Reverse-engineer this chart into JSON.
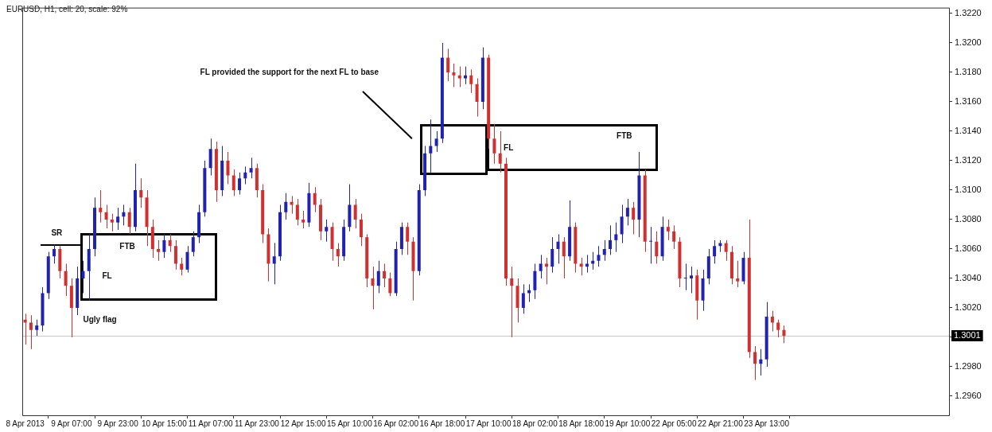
{
  "chart_data": {
    "type": "candlestick",
    "title": "EURUSD, H1, cell: 20, scale: 92%",
    "annotations": [
      "FL provided the support for the next FL to base",
      "SR",
      "FTB",
      "FL",
      "Ugly flag",
      "FL",
      "FTB"
    ],
    "categories": [
      "8 Apr 2013",
      null,
      null,
      null,
      null,
      null,
      null,
      null,
      "9 Apr 07:00",
      null,
      null,
      null,
      null,
      null,
      null,
      null,
      "9 Apr 23:00",
      null,
      null,
      null,
      null,
      null,
      null,
      null,
      "10 Apr 15:00",
      null,
      null,
      null,
      null,
      null,
      null,
      null,
      "11 Apr 07:00",
      null,
      null,
      null,
      null,
      null,
      null,
      null,
      "11 Apr 23:00",
      null,
      null,
      null,
      null,
      null,
      null,
      null,
      "12 Apr 15:00",
      null,
      null,
      null,
      null,
      null,
      null,
      null,
      "15 Apr 10:00",
      null,
      null,
      null,
      null,
      null,
      null,
      null,
      "16 Apr 02:00",
      null,
      null,
      null,
      null,
      null,
      null,
      null,
      "16 Apr 18:00",
      null,
      null,
      null,
      null,
      null,
      null,
      null,
      "17 Apr 10:00",
      null,
      null,
      null,
      null,
      null,
      null,
      null,
      "18 Apr 02:00",
      null,
      null,
      null,
      null,
      null,
      null,
      null,
      "18 Apr 18:00",
      null,
      null,
      null,
      null,
      null,
      null,
      null,
      "19 Apr 10:00",
      null,
      null,
      null,
      null,
      null,
      null,
      null,
      "22 Apr 05:00",
      null,
      null,
      null,
      null,
      null,
      null,
      null,
      "22 Apr 21:00",
      null,
      null,
      null,
      null,
      null,
      null,
      null,
      "23 Apr 13:00",
      null,
      null,
      null,
      null,
      null,
      null,
      null,
      null,
      null,
      null,
      null,
      null,
      null,
      null,
      null,
      null,
      null,
      null,
      null,
      null,
      null,
      null,
      null,
      null,
      null,
      null,
      null,
      null,
      null,
      null,
      null
    ],
    "ohlc": [
      [
        1.3012,
        1.3016,
        1.2995,
        1.301
      ],
      [
        1.301,
        1.3015,
        1.2992,
        1.3005
      ],
      [
        1.3005,
        1.3012,
        1.3001,
        1.3008
      ],
      [
        1.3008,
        1.3034,
        1.3004,
        1.303
      ],
      [
        1.303,
        1.3058,
        1.3026,
        1.3055
      ],
      [
        1.3055,
        1.3063,
        1.305,
        1.306
      ],
      [
        1.306,
        1.3062,
        1.304,
        1.3045
      ],
      [
        1.3045,
        1.305,
        1.3028,
        1.3035
      ],
      [
        1.3035,
        1.304,
        1.3,
        1.302
      ],
      [
        1.302,
        1.3048,
        1.3015,
        1.304
      ],
      [
        1.304,
        1.3052,
        1.303,
        1.3045
      ],
      [
        1.3045,
        1.307,
        1.3025,
        1.306
      ],
      [
        1.306,
        1.3095,
        1.3055,
        1.3088
      ],
      [
        1.3088,
        1.31,
        1.3078,
        1.3085
      ],
      [
        1.3085,
        1.309,
        1.3074,
        1.308
      ],
      [
        1.308,
        1.3084,
        1.3072,
        1.3078
      ],
      [
        1.3078,
        1.3088,
        1.3073,
        1.3082
      ],
      [
        1.3082,
        1.309,
        1.3076,
        1.3085
      ],
      [
        1.3085,
        1.3088,
        1.307,
        1.3075
      ],
      [
        1.3075,
        1.3118,
        1.3072,
        1.31
      ],
      [
        1.31,
        1.3108,
        1.3088,
        1.3095
      ],
      [
        1.3095,
        1.31,
        1.3062,
        1.3075
      ],
      [
        1.3075,
        1.308,
        1.3054,
        1.306
      ],
      [
        1.306,
        1.3066,
        1.3052,
        1.3058
      ],
      [
        1.3058,
        1.307,
        1.3054,
        1.3066
      ],
      [
        1.3066,
        1.307,
        1.3058,
        1.3062
      ],
      [
        1.3062,
        1.3066,
        1.3046,
        1.305
      ],
      [
        1.305,
        1.3054,
        1.3042,
        1.3046
      ],
      [
        1.3046,
        1.3062,
        1.3044,
        1.3058
      ],
      [
        1.3058,
        1.3072,
        1.3055,
        1.3068
      ],
      [
        1.3068,
        1.309,
        1.3064,
        1.3085
      ],
      [
        1.3085,
        1.312,
        1.3082,
        1.3115
      ],
      [
        1.3115,
        1.3135,
        1.311,
        1.3128
      ],
      [
        1.3128,
        1.3133,
        1.3092,
        1.31
      ],
      [
        1.31,
        1.313,
        1.3096,
        1.312
      ],
      [
        1.312,
        1.3126,
        1.3104,
        1.311
      ],
      [
        1.311,
        1.3114,
        1.3096,
        1.31
      ],
      [
        1.31,
        1.3112,
        1.3097,
        1.3108
      ],
      [
        1.3108,
        1.3116,
        1.3104,
        1.3112
      ],
      [
        1.3112,
        1.3122,
        1.3108,
        1.3115
      ],
      [
        1.3115,
        1.3118,
        1.3095,
        1.31
      ],
      [
        1.31,
        1.3104,
        1.3064,
        1.307
      ],
      [
        1.307,
        1.3074,
        1.3038,
        1.305
      ],
      [
        1.305,
        1.3064,
        1.3036,
        1.3055
      ],
      [
        1.3055,
        1.309,
        1.3052,
        1.3085
      ],
      [
        1.3085,
        1.3098,
        1.308,
        1.3092
      ],
      [
        1.3092,
        1.3096,
        1.3084,
        1.309
      ],
      [
        1.309,
        1.3094,
        1.3076,
        1.308
      ],
      [
        1.308,
        1.3086,
        1.3074,
        1.3078
      ],
      [
        1.3078,
        1.3105,
        1.3075,
        1.3098
      ],
      [
        1.3098,
        1.3102,
        1.3085,
        1.309
      ],
      [
        1.309,
        1.3094,
        1.3066,
        1.3072
      ],
      [
        1.3072,
        1.308,
        1.3065,
        1.3075
      ],
      [
        1.3075,
        1.3078,
        1.3052,
        1.306
      ],
      [
        1.306,
        1.3064,
        1.3048,
        1.3055
      ],
      [
        1.3055,
        1.308,
        1.3052,
        1.3075
      ],
      [
        1.3075,
        1.3104,
        1.3072,
        1.309
      ],
      [
        1.309,
        1.3094,
        1.3074,
        1.308
      ],
      [
        1.308,
        1.3084,
        1.3062,
        1.3068
      ],
      [
        1.3068,
        1.307,
        1.3034,
        1.304
      ],
      [
        1.304,
        1.3048,
        1.3019,
        1.3035
      ],
      [
        1.3035,
        1.3052,
        1.303,
        1.3045
      ],
      [
        1.3045,
        1.305,
        1.3034,
        1.304
      ],
      [
        1.304,
        1.3044,
        1.3028,
        1.303
      ],
      [
        1.303,
        1.3065,
        1.3028,
        1.306
      ],
      [
        1.306,
        1.3078,
        1.3056,
        1.3075
      ],
      [
        1.3075,
        1.3078,
        1.3056,
        1.3065
      ],
      [
        1.3065,
        1.3068,
        1.3025,
        1.3045
      ],
      [
        1.3045,
        1.3104,
        1.3042,
        1.31
      ],
      [
        1.31,
        1.313,
        1.3096,
        1.3125
      ],
      [
        1.3125,
        1.3148,
        1.3112,
        1.313
      ],
      [
        1.313,
        1.314,
        1.3126,
        1.3135
      ],
      [
        1.3135,
        1.32,
        1.3132,
        1.319
      ],
      [
        1.319,
        1.3196,
        1.3174,
        1.318
      ],
      [
        1.318,
        1.3186,
        1.317,
        1.3178
      ],
      [
        1.3178,
        1.3184,
        1.317,
        1.3176
      ],
      [
        1.3176,
        1.3184,
        1.3172,
        1.3178
      ],
      [
        1.3178,
        1.3182,
        1.3166,
        1.3172
      ],
      [
        1.3172,
        1.3176,
        1.315,
        1.316
      ],
      [
        1.316,
        1.3197,
        1.3155,
        1.319
      ],
      [
        1.319,
        1.3192,
        1.3128,
        1.3135
      ],
      [
        1.3135,
        1.3145,
        1.3118,
        1.3125
      ],
      [
        1.3125,
        1.314,
        1.3112,
        1.3118
      ],
      [
        1.3118,
        1.3122,
        1.3035,
        1.304
      ],
      [
        1.304,
        1.3048,
        1.3,
        1.3035
      ],
      [
        1.3035,
        1.304,
        1.301,
        1.302
      ],
      [
        1.302,
        1.3036,
        1.3016,
        1.303
      ],
      [
        1.303,
        1.3036,
        1.3024,
        1.3032
      ],
      [
        1.3032,
        1.305,
        1.3026,
        1.3045
      ],
      [
        1.3045,
        1.3056,
        1.304,
        1.305
      ],
      [
        1.305,
        1.3054,
        1.3036,
        1.3048
      ],
      [
        1.3048,
        1.3068,
        1.3044,
        1.306
      ],
      [
        1.306,
        1.307,
        1.305,
        1.3065
      ],
      [
        1.3065,
        1.3068,
        1.304,
        1.3055
      ],
      [
        1.3055,
        1.3093,
        1.3052,
        1.3075
      ],
      [
        1.3075,
        1.3078,
        1.3044,
        1.305
      ],
      [
        1.305,
        1.3054,
        1.3042,
        1.3048
      ],
      [
        1.3048,
        1.3056,
        1.3044,
        1.305
      ],
      [
        1.305,
        1.3058,
        1.3046,
        1.3052
      ],
      [
        1.3052,
        1.3062,
        1.3048,
        1.3056
      ],
      [
        1.3056,
        1.3066,
        1.3052,
        1.306
      ],
      [
        1.306,
        1.3076,
        1.3056,
        1.3066
      ],
      [
        1.3066,
        1.3078,
        1.3058,
        1.307
      ],
      [
        1.307,
        1.309,
        1.3064,
        1.3082
      ],
      [
        1.3082,
        1.3094,
        1.3076,
        1.3088
      ],
      [
        1.3088,
        1.3092,
        1.307,
        1.308
      ],
      [
        1.308,
        1.3126,
        1.3068,
        1.311
      ],
      [
        1.311,
        1.3114,
        1.3058,
        1.3065
      ],
      [
        1.3065,
        1.3075,
        1.305,
        1.3065
      ],
      [
        1.3065,
        1.3072,
        1.305,
        1.3055
      ],
      [
        1.3055,
        1.3082,
        1.3052,
        1.3075
      ],
      [
        1.3075,
        1.308,
        1.3066,
        1.3072
      ],
      [
        1.3072,
        1.3076,
        1.306,
        1.3065
      ],
      [
        1.3065,
        1.3068,
        1.3034,
        1.304
      ],
      [
        1.304,
        1.305,
        1.3032,
        1.304
      ],
      [
        1.304,
        1.3048,
        1.303,
        1.3042
      ],
      [
        1.3042,
        1.3046,
        1.3012,
        1.3025
      ],
      [
        1.3025,
        1.3046,
        1.3018,
        1.304
      ],
      [
        1.304,
        1.306,
        1.3036,
        1.3055
      ],
      [
        1.3055,
        1.3066,
        1.305,
        1.3062
      ],
      [
        1.3062,
        1.3066,
        1.3058,
        1.3064
      ],
      [
        1.3064,
        1.3066,
        1.3052,
        1.3058
      ],
      [
        1.3058,
        1.3062,
        1.3036,
        1.304
      ],
      [
        1.304,
        1.3052,
        1.3034,
        1.3038
      ],
      [
        1.3038,
        1.3058,
        1.3036,
        1.3054
      ],
      [
        1.3054,
        1.308,
        1.2986,
        1.299
      ],
      [
        1.299,
        1.2994,
        1.2971,
        1.2982
      ],
      [
        1.2982,
        1.2992,
        1.2974,
        1.2985
      ],
      [
        1.2985,
        1.3024,
        1.298,
        1.3014
      ],
      [
        1.3014,
        1.3018,
        1.3004,
        1.301
      ],
      [
        1.301,
        1.3012,
        1.3,
        1.3005
      ],
      [
        1.3005,
        1.3008,
        1.2996,
        1.3001
      ],
      null,
      null,
      null,
      null,
      null,
      null,
      null,
      null,
      null,
      null,
      null,
      null,
      null,
      null,
      null,
      null,
      null,
      null,
      null,
      null,
      null,
      null,
      null,
      null,
      null,
      null,
      null,
      null
    ],
    "colors": [
      "#d03030",
      "#d03030",
      "#2222b0",
      "#2222b0",
      "#2222b0",
      "#2222b0",
      "#d03030",
      "#d03030",
      "#d03030",
      "#2222b0",
      "#2222b0",
      "#2222b0",
      "#2222b0",
      "#d03030",
      "#d03030",
      "#d03030",
      "#2222b0",
      "#2222b0",
      "#d03030",
      "#2222b0",
      "#d03030",
      "#d03030",
      "#d03030",
      "#d03030",
      "#2222b0",
      "#d03030",
      "#d03030",
      "#d03030",
      "#2222b0",
      "#2222b0",
      "#2222b0",
      "#2222b0",
      "#2222b0",
      "#d03030",
      "#2222b0",
      "#d03030",
      "#d03030",
      "#2222b0",
      "#2222b0",
      "#2222b0",
      "#d03030",
      "#d03030",
      "#d03030",
      "#2222b0",
      "#2222b0",
      "#2222b0",
      "#d03030",
      "#d03030",
      "#d03030",
      "#2222b0",
      "#d03030",
      "#d03030",
      "#2222b0",
      "#d03030",
      "#d03030",
      "#2222b0",
      "#2222b0",
      "#d03030",
      "#d03030",
      "#d03030",
      "#d03030",
      "#2222b0",
      "#d03030",
      "#d03030",
      "#2222b0",
      "#2222b0",
      "#d03030",
      "#d03030",
      "#2222b0",
      "#2222b0",
      "#2222b0",
      "#2222b0",
      "#2222b0",
      "#d03030",
      "#d03030",
      "#d03030",
      "#2222b0",
      "#d03030",
      "#d03030",
      "#2222b0",
      "#d03030",
      "#d03030",
      "#d03030",
      "#d03030",
      "#d03030",
      "#d03030",
      "#2222b0",
      "#2222b0",
      "#2222b0",
      "#2222b0",
      "#d03030",
      "#2222b0",
      "#2222b0",
      "#d03030",
      "#2222b0",
      "#d03030",
      "#d03030",
      "#2222b0",
      "#2222b0",
      "#2222b0",
      "#2222b0",
      "#2222b0",
      "#2222b0",
      "#2222b0",
      "#2222b0",
      "#d03030",
      "#2222b0",
      "#d03030",
      "#2222b0",
      "#d03030",
      "#2222b0",
      "#d03030",
      "#d03030",
      "#d03030",
      "#2222b0",
      "#2222b0",
      "#d03030",
      "#2222b0",
      "#2222b0",
      "#2222b0",
      "#2222b0",
      "#d03030",
      "#d03030",
      "#d03030",
      "#2222b0",
      "#d03030",
      "#d03030",
      "#2222b0",
      "#2222b0",
      "#d03030",
      "#d03030",
      "#d03030",
      null,
      null,
      null,
      null,
      null,
      null,
      null,
      null,
      null,
      null,
      null,
      null,
      null,
      null,
      null,
      null,
      null,
      null,
      null,
      null,
      null,
      null,
      null,
      null,
      null,
      null,
      null,
      null
    ],
    "ylim": [
      1.2947,
      1.3224
    ],
    "yticks": [
      {
        "value": 1.296,
        "label": "1.2960"
      },
      {
        "value": 1.298,
        "label": "1.2980"
      },
      {
        "value": 1.3,
        "label": null
      },
      {
        "value": 1.302,
        "label": "1.3020"
      },
      {
        "value": 1.304,
        "label": "1.3040"
      },
      {
        "value": 1.306,
        "label": "1.3060"
      },
      {
        "value": 1.308,
        "label": "1.3080"
      },
      {
        "value": 1.31,
        "label": "1.3100"
      },
      {
        "value": 1.312,
        "label": "1.3120"
      },
      {
        "value": 1.314,
        "label": "1.3140"
      },
      {
        "value": 1.316,
        "label": "1.3160"
      },
      {
        "value": 1.318,
        "label": "1.3180"
      },
      {
        "value": 1.32,
        "label": "1.3200"
      },
      {
        "value": 1.322,
        "label": "1.3220"
      }
    ],
    "ref_lines": [
      {
        "axis": "y",
        "value": 1.3001,
        "label": "1.3001",
        "color": "#c8c8c8"
      }
    ]
  }
}
